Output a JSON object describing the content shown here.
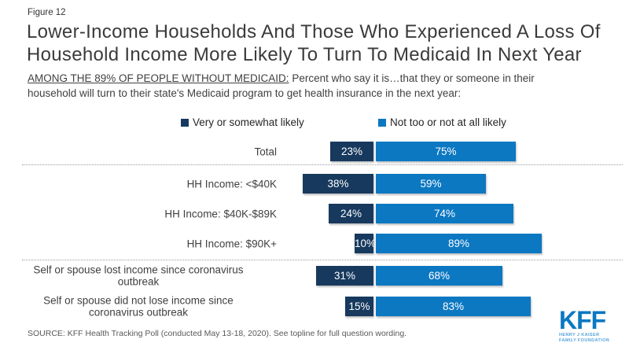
{
  "figure_label": "Figure 12",
  "title": "Lower-Income Households And Those Who Experienced A Loss Of\nHousehold Income More Likely To Turn To Medicaid In Next Year",
  "subtitle": {
    "underlined": "AMONG THE 89% OF PEOPLE WITHOUT MEDICAID:",
    "rest": " Percent who say it is…that they or someone in their\nhousehold will turn to their state's Medicaid program to get health insurance in the next year:"
  },
  "legend": [
    {
      "label": "Very or somewhat likely",
      "color": "#17395e"
    },
    {
      "label": "Not too or not at all likely",
      "color": "#0c78c2"
    }
  ],
  "chart_data": {
    "type": "bar",
    "orientation": "horizontal",
    "stacked": true,
    "title": "Lower-Income Households And Those Who Experienced A Loss Of Household Income More Likely To Turn To Medicaid In Next Year",
    "categories": [
      "Total",
      "HH Income: <$40K",
      "HH Income: $40K-$89K",
      "HH Income: $90K+",
      "Self or spouse lost income since coronavirus\noutbreak",
      "Self or spouse did not lose income since\ncoronavirus outbreak"
    ],
    "series": [
      {
        "name": "Very or somewhat likely",
        "color": "#17395e",
        "values": [
          23,
          38,
          24,
          10,
          31,
          15
        ]
      },
      {
        "name": "Not too or not at all likely",
        "color": "#0c78c2",
        "values": [
          75,
          59,
          74,
          89,
          68,
          83
        ]
      }
    ],
    "value_suffix": "%",
    "xlim": [
      0,
      100
    ],
    "grid": false,
    "legend_position": "top",
    "separators_after": [
      0,
      3
    ]
  },
  "source": "SOURCE: KFF Health Tracking Poll (conducted May 13-18, 2020). See topline for full question wording.",
  "logo": {
    "text": "KFF",
    "sub_line1": "HENRY J KAISER",
    "sub_line2": "FAMILY FOUNDATION",
    "color": "#0c78c2"
  }
}
